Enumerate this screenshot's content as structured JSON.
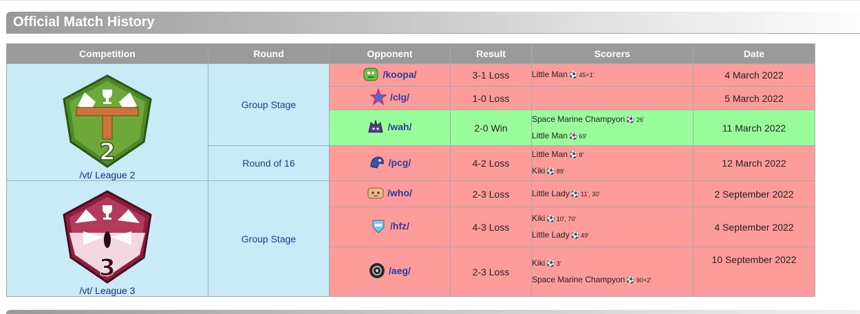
{
  "section": {
    "title": "Official Match History"
  },
  "table": {
    "headers": [
      "Competition",
      "Round",
      "Opponent",
      "Result",
      "Scorers",
      "Date"
    ],
    "competitions": [
      {
        "name": "/vt/ League 2",
        "crest_icon": "league-2-crest-icon",
        "crest_number": "2"
      },
      {
        "name": "/vt/ League 3",
        "crest_icon": "league-3-crest-icon",
        "crest_number": "3"
      }
    ],
    "rounds": [
      "Group Stage",
      "Round of 16",
      "Group Stage"
    ],
    "matches": [
      {
        "opponent": "/koopa/",
        "icon": "koopa-team-icon",
        "result": "3-1 Loss",
        "outcome": "loss",
        "scorers": [
          {
            "name": "Little Man",
            "minutes": "45+1'"
          }
        ],
        "date": "4 March 2022"
      },
      {
        "opponent": "/clg/",
        "icon": "clg-team-icon",
        "result": "1-0 Loss",
        "outcome": "loss",
        "scorers": [],
        "date": "5 March 2022"
      },
      {
        "opponent": "/wah/",
        "icon": "wah-team-icon",
        "result": "2-0 Win",
        "outcome": "win",
        "scorers": [
          {
            "name": "Space Marine Champyon",
            "minutes": "26'"
          },
          {
            "name": "Little Man",
            "minutes": "69'"
          }
        ],
        "date": "11 March 2022"
      },
      {
        "opponent": "/pcg/",
        "icon": "pcg-team-icon",
        "result": "4-2 Loss",
        "outcome": "loss",
        "scorers": [
          {
            "name": "Little Man",
            "minutes": "8'"
          },
          {
            "name": "Kiki",
            "minutes": "89'"
          }
        ],
        "date": "12 March 2022"
      },
      {
        "opponent": "/who/",
        "icon": "who-team-icon",
        "result": "2-3 Loss",
        "outcome": "loss",
        "scorers": [
          {
            "name": "Little Lady",
            "minutes": "11', 30'"
          }
        ],
        "date": "2 September 2022"
      },
      {
        "opponent": "/hfz/",
        "icon": "hfz-team-icon",
        "result": "4-3 Loss",
        "outcome": "loss",
        "scorers": [
          {
            "name": "Kiki",
            "minutes": "10', 70'"
          },
          {
            "name": "Little Lady",
            "minutes": "49'"
          }
        ],
        "date": "4 September 2022"
      },
      {
        "opponent": "/aeg/",
        "icon": "aeg-team-icon",
        "result": "2-3 Loss",
        "outcome": "loss",
        "scorers": [
          {
            "name": "Kiki",
            "minutes": "3'"
          },
          {
            "name": "Space Marine Champyon",
            "minutes": "90+2'"
          }
        ],
        "date": "10 September 2022"
      }
    ],
    "ball_icon": "soccer-ball-icon",
    "colors": {
      "loss": "#fe9b9b",
      "win": "#99fe99",
      "competition_cell": "#c9ebf8",
      "header": "#9a9a9a"
    }
  }
}
